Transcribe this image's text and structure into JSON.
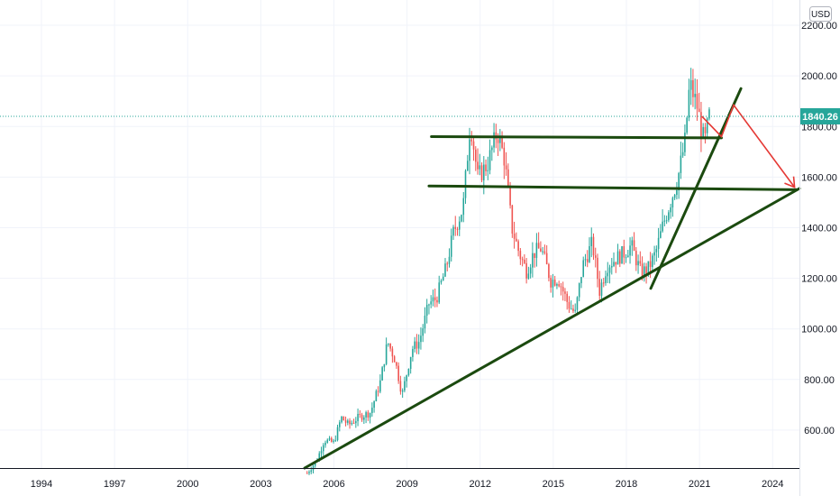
{
  "currency_label": "USD",
  "last_price": {
    "value": 1840.26,
    "label": "1840.26",
    "color": "#26a69a"
  },
  "colors": {
    "up": "#26a69a",
    "down": "#ef5350",
    "trendline": "#1b4a0f",
    "arrow": "#e53935",
    "grid": "#f0f3fa",
    "axis": "#131722"
  },
  "chart_data": {
    "type": "candlestick",
    "interval": "monthly",
    "title": "",
    "xlabel": "",
    "ylabel": "",
    "x_range": [
      1992.3,
      2025.1
    ],
    "y_range": [
      450,
      2300
    ],
    "x_ticks": [
      {
        "x": 1994,
        "label": "1994"
      },
      {
        "x": 1997,
        "label": "1997"
      },
      {
        "x": 2000,
        "label": "2000"
      },
      {
        "x": 2003,
        "label": "2003"
      },
      {
        "x": 2006,
        "label": "2006"
      },
      {
        "x": 2009,
        "label": "2009"
      },
      {
        "x": 2012,
        "label": "2012"
      },
      {
        "x": 2015,
        "label": "2015"
      },
      {
        "x": 2018,
        "label": "2018"
      },
      {
        "x": 2021,
        "label": "2021"
      },
      {
        "x": 2024,
        "label": "2024"
      }
    ],
    "y_ticks": [
      {
        "y": 600,
        "label": "600.00"
      },
      {
        "y": 800,
        "label": "800.00"
      },
      {
        "y": 1000,
        "label": "1000.00"
      },
      {
        "y": 1200,
        "label": "1200.00"
      },
      {
        "y": 1400,
        "label": "1400.00"
      },
      {
        "y": 1600,
        "label": "1600.00"
      },
      {
        "y": 1800,
        "label": "1800.00"
      },
      {
        "y": 2000,
        "label": "2000.00"
      },
      {
        "y": 2200,
        "label": "2200.00"
      }
    ],
    "price_path": [
      [
        2004.9,
        430
      ],
      [
        2005.3,
        480
      ],
      [
        2005.6,
        560
      ],
      [
        2006.0,
        550
      ],
      [
        2006.3,
        650
      ],
      [
        2006.6,
        620
      ],
      [
        2007.0,
        650
      ],
      [
        2007.5,
        670
      ],
      [
        2007.9,
        790
      ],
      [
        2008.2,
        950
      ],
      [
        2008.5,
        880
      ],
      [
        2008.8,
        740
      ],
      [
        2009.2,
        920
      ],
      [
        2009.5,
        950
      ],
      [
        2009.9,
        1100
      ],
      [
        2010.2,
        1120
      ],
      [
        2010.6,
        1240
      ],
      [
        2010.9,
        1380
      ],
      [
        2011.3,
        1480
      ],
      [
        2011.6,
        1820
      ],
      [
        2011.9,
        1600
      ],
      [
        2012.3,
        1650
      ],
      [
        2012.7,
        1780
      ],
      [
        2013.0,
        1670
      ],
      [
        2013.3,
        1400
      ],
      [
        2013.6,
        1300
      ],
      [
        2013.9,
        1230
      ],
      [
        2014.2,
        1300
      ],
      [
        2014.5,
        1320
      ],
      [
        2014.9,
        1190
      ],
      [
        2015.2,
        1200
      ],
      [
        2015.6,
        1100
      ],
      [
        2015.9,
        1060
      ],
      [
        2016.2,
        1250
      ],
      [
        2016.6,
        1340
      ],
      [
        2016.9,
        1150
      ],
      [
        2017.2,
        1250
      ],
      [
        2017.6,
        1280
      ],
      [
        2017.9,
        1300
      ],
      [
        2018.2,
        1330
      ],
      [
        2018.6,
        1220
      ],
      [
        2018.9,
        1240
      ],
      [
        2019.2,
        1300
      ],
      [
        2019.5,
        1410
      ],
      [
        2019.8,
        1500
      ],
      [
        2020.1,
        1590
      ],
      [
        2020.4,
        1740
      ],
      [
        2020.6,
        1970
      ],
      [
        2020.9,
        1880
      ],
      [
        2021.2,
        1730
      ],
      [
        2021.4,
        1840
      ]
    ],
    "annotations": {
      "trendlines": [
        {
          "from": [
            2004.8,
            450
          ],
          "to": [
            2025.1,
            1555
          ]
        },
        {
          "from": [
            2019.0,
            1160
          ],
          "to": [
            2022.7,
            1950
          ]
        }
      ],
      "horizontal_segments": [
        {
          "from": [
            2010.0,
            1760
          ],
          "to": [
            2021.9,
            1755
          ]
        },
        {
          "from": [
            2009.9,
            1565
          ],
          "to": [
            2025.0,
            1550
          ]
        }
      ],
      "arrow_path": [
        [
          2021.1,
          1840
        ],
        [
          2021.9,
          1760
        ],
        [
          2022.4,
          1885
        ],
        [
          2024.9,
          1560
        ]
      ]
    }
  }
}
